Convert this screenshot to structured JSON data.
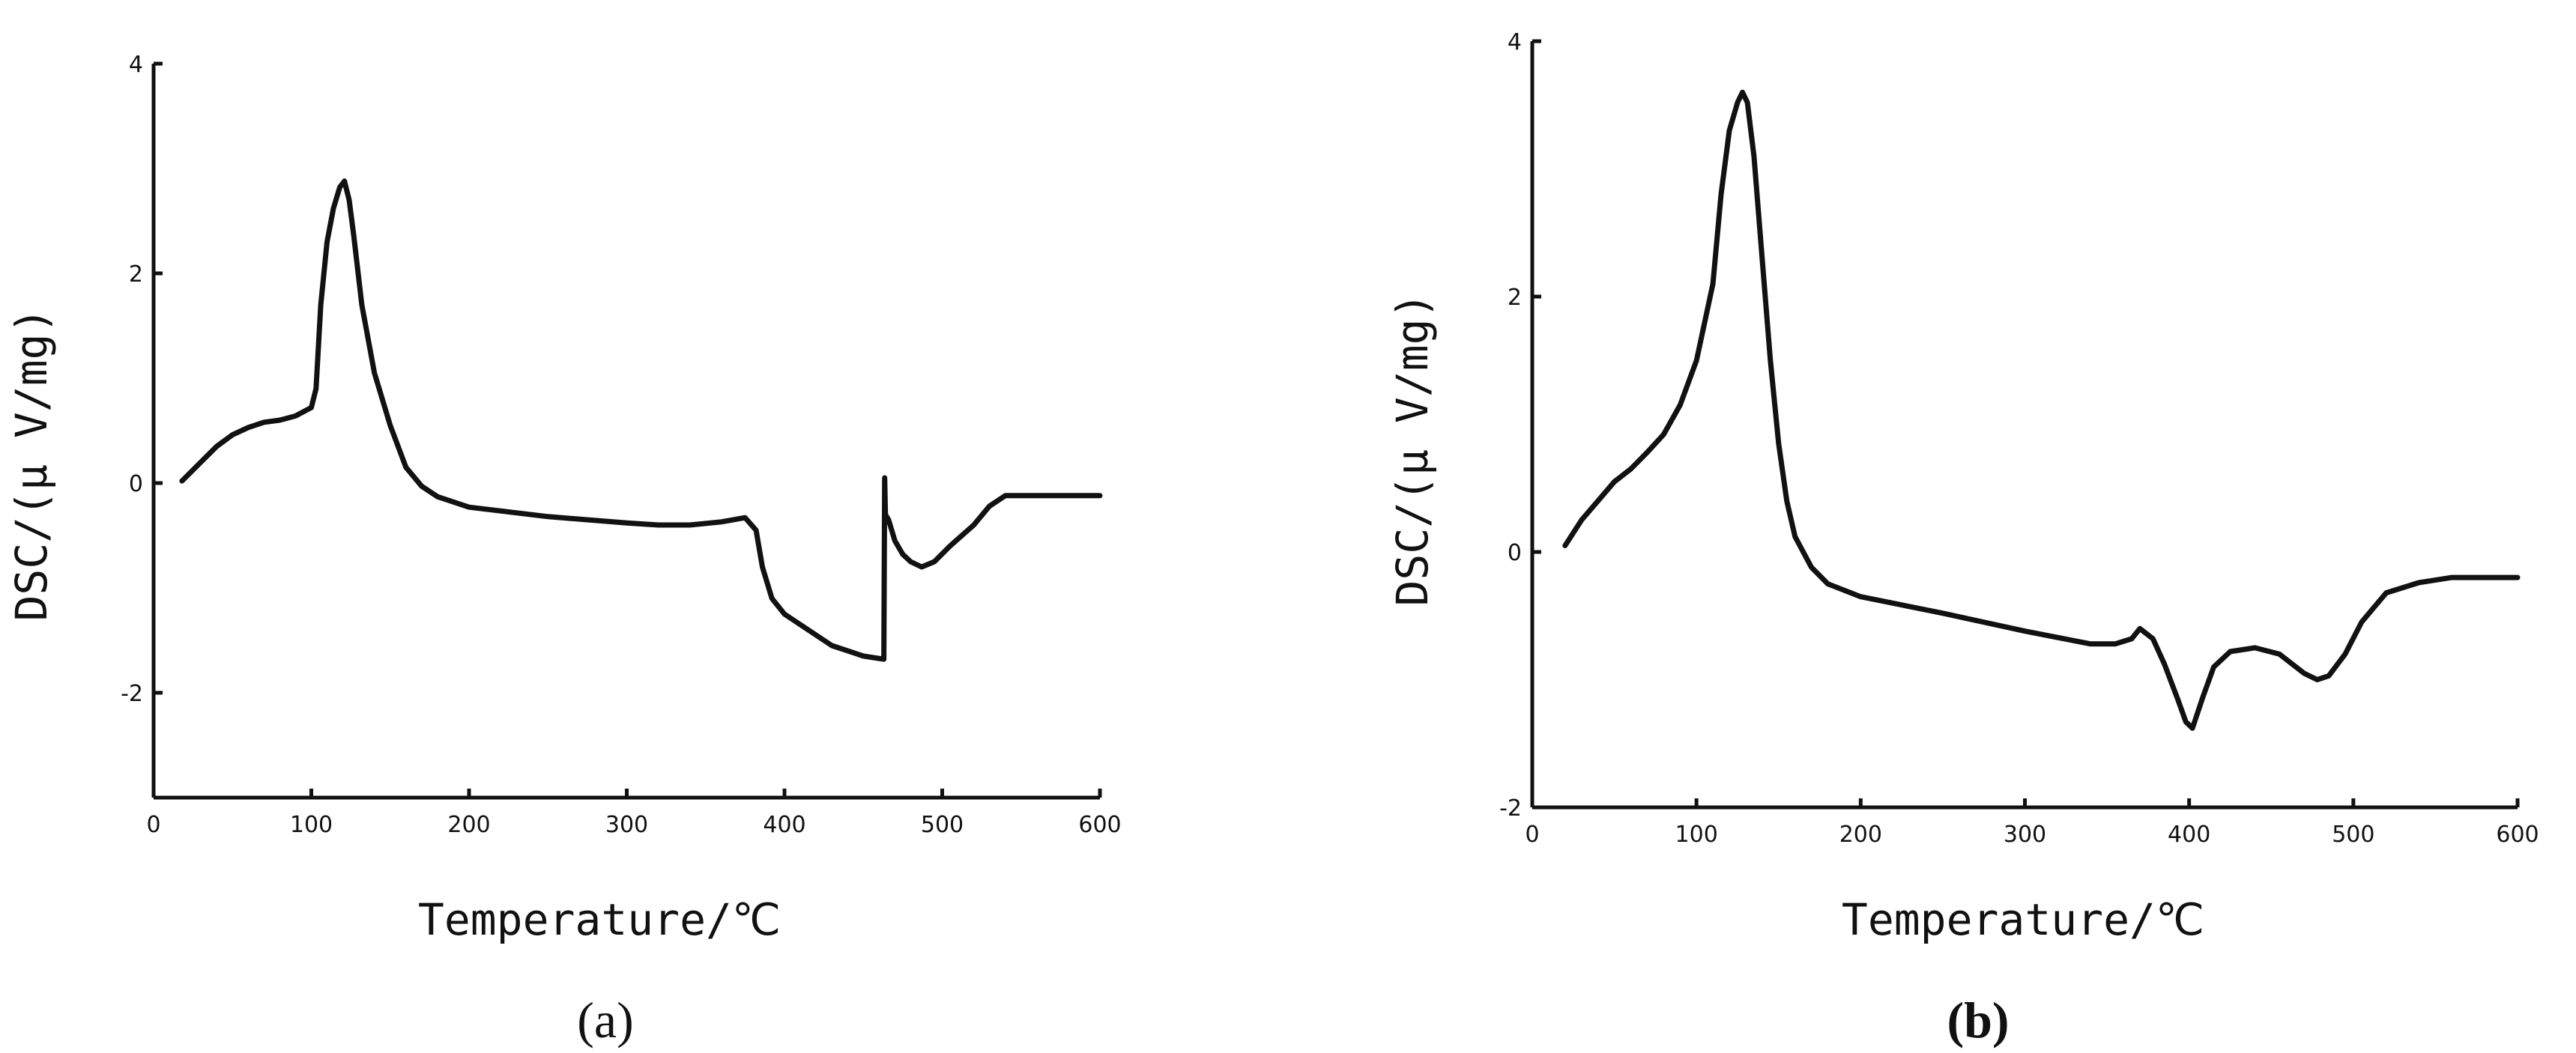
{
  "chart_data": [
    {
      "id": "a",
      "type": "line",
      "panel_label": "(a)",
      "panel_label_bold": false,
      "title": "",
      "xlabel": "Temperature/℃",
      "ylabel": "DSC/(μ V/mg)",
      "xlim": [
        0,
        600
      ],
      "ylim": [
        -3,
        4
      ],
      "xticks": [
        0,
        100,
        200,
        300,
        400,
        500,
        600
      ],
      "yticks": [
        -2,
        0,
        2,
        4
      ],
      "grid": false,
      "series": [
        {
          "x": [
            18,
            30,
            40,
            50,
            60,
            70,
            80,
            90,
            100,
            103,
            106,
            110,
            114,
            118,
            121,
            124,
            127,
            132,
            140,
            150,
            160,
            170,
            180,
            200,
            250,
            300,
            320,
            340,
            360,
            375,
            382,
            386,
            392,
            400,
            410,
            430,
            450,
            463,
            463.5,
            464,
            466,
            470,
            475,
            480,
            487,
            495,
            505,
            520,
            530,
            540,
            560,
            580,
            600
          ],
          "y": [
            0.02,
            0.2,
            0.35,
            0.46,
            0.53,
            0.58,
            0.6,
            0.64,
            0.72,
            0.9,
            1.7,
            2.3,
            2.62,
            2.82,
            2.88,
            2.7,
            2.35,
            1.7,
            1.05,
            0.55,
            0.15,
            -0.03,
            -0.13,
            -0.23,
            -0.32,
            -0.38,
            -0.4,
            -0.4,
            -0.37,
            -0.33,
            -0.45,
            -0.8,
            -1.1,
            -1.25,
            -1.35,
            -1.55,
            -1.65,
            -1.68,
            0.05,
            -0.3,
            -0.35,
            -0.55,
            -0.68,
            -0.75,
            -0.8,
            -0.75,
            -0.6,
            -0.4,
            -0.22,
            -0.12,
            -0.12,
            -0.12,
            -0.12
          ]
        }
      ]
    },
    {
      "id": "b",
      "type": "line",
      "panel_label": "(b)",
      "panel_label_bold": true,
      "title": "",
      "xlabel": "Temperature/℃",
      "ylabel": "DSC/(μ V/mg)",
      "xlim": [
        0,
        600
      ],
      "ylim": [
        -2,
        4
      ],
      "xticks": [
        0,
        100,
        200,
        300,
        400,
        500,
        600
      ],
      "yticks": [
        -2,
        0,
        2,
        4
      ],
      "grid": false,
      "series": [
        {
          "x": [
            20,
            30,
            40,
            50,
            60,
            70,
            80,
            90,
            100,
            110,
            115,
            120,
            125,
            128,
            131,
            135,
            140,
            145,
            150,
            155,
            160,
            170,
            180,
            200,
            250,
            300,
            340,
            355,
            365,
            370,
            378,
            385,
            393,
            398,
            402,
            408,
            415,
            425,
            440,
            455,
            470,
            478,
            485,
            495,
            505,
            520,
            540,
            560,
            580,
            600
          ],
          "y": [
            0.05,
            0.25,
            0.4,
            0.55,
            0.65,
            0.78,
            0.92,
            1.15,
            1.5,
            2.1,
            2.8,
            3.3,
            3.52,
            3.6,
            3.52,
            3.1,
            2.3,
            1.5,
            0.85,
            0.4,
            0.12,
            -0.12,
            -0.25,
            -0.35,
            -0.48,
            -0.62,
            -0.72,
            -0.72,
            -0.68,
            -0.6,
            -0.68,
            -0.88,
            -1.15,
            -1.33,
            -1.38,
            -1.15,
            -0.9,
            -0.78,
            -0.75,
            -0.8,
            -0.95,
            -1.0,
            -0.97,
            -0.8,
            -0.55,
            -0.32,
            -0.24,
            -0.2,
            -0.2,
            -0.2
          ]
        }
      ]
    }
  ]
}
